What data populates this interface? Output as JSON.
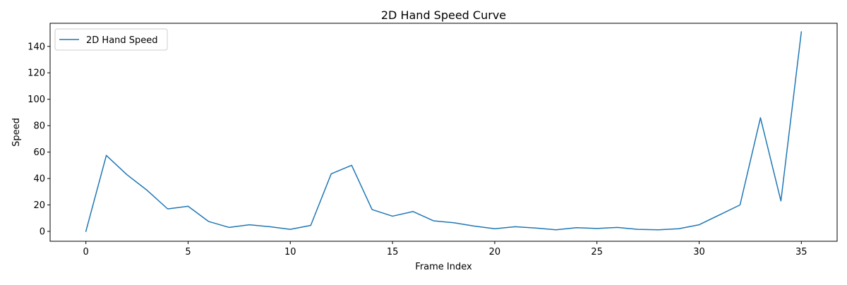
{
  "chart_data": {
    "type": "line",
    "title": "2D Hand Speed Curve",
    "xlabel": "Frame Index",
    "ylabel": "Speed",
    "xlim": [
      -1.75,
      36.75
    ],
    "ylim": [
      -7.5,
      157.5
    ],
    "xticks": [
      0,
      5,
      10,
      15,
      20,
      25,
      30,
      35
    ],
    "xtick_labels": [
      "0",
      "5",
      "10",
      "15",
      "20",
      "25",
      "30",
      "35"
    ],
    "yticks": [
      0,
      20,
      40,
      60,
      80,
      100,
      120,
      140
    ],
    "ytick_labels": [
      "0",
      "20",
      "40",
      "60",
      "80",
      "100",
      "120",
      "140"
    ],
    "grid": false,
    "legend_position": "upper-left",
    "series": [
      {
        "name": "2D Hand Speed",
        "color": "#1f77b4",
        "x": [
          0,
          1,
          2,
          3,
          4,
          5,
          6,
          7,
          8,
          9,
          10,
          11,
          12,
          13,
          14,
          15,
          16,
          17,
          18,
          19,
          20,
          21,
          22,
          23,
          24,
          25,
          26,
          27,
          28,
          29,
          30,
          31,
          32,
          33,
          34,
          35
        ],
        "y": [
          0,
          57.5,
          43,
          31,
          17,
          19,
          7.5,
          3,
          5,
          3.5,
          1.5,
          4.5,
          43.5,
          50,
          16.5,
          11.5,
          15,
          8,
          6.5,
          4,
          2,
          3.5,
          2.5,
          1.2,
          2.8,
          2.2,
          3,
          1.5,
          1.2,
          2,
          5,
          12.5,
          20,
          86,
          23,
          151
        ]
      }
    ]
  }
}
